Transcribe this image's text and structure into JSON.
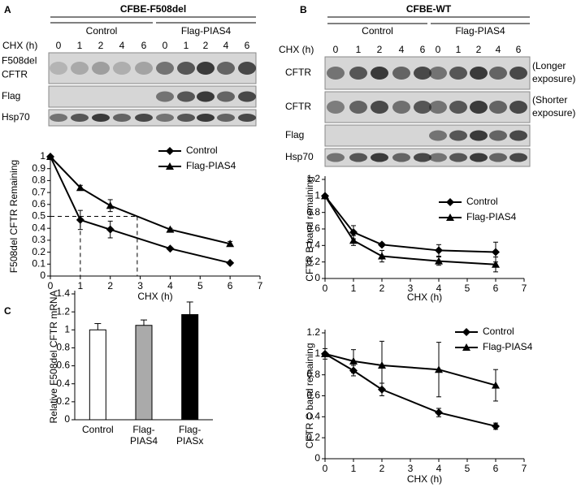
{
  "panels": [
    "A",
    "B",
    "C"
  ],
  "blot_a": {
    "title": "CFBE-F508del",
    "groups": [
      "Control",
      "Flag-PIAS4"
    ],
    "time_label": "CHX (h)",
    "lanes": [
      0,
      1,
      2,
      4,
      6,
      0,
      1,
      2,
      4,
      6
    ],
    "rows": [
      [
        "F508del",
        "CFTR"
      ],
      [
        "Flag"
      ],
      [
        "Hsp70"
      ]
    ]
  },
  "blot_b": {
    "title": "CFBE-WT",
    "groups": [
      "Control",
      "Flag-PIAS4"
    ],
    "time_label": "CHX (h)",
    "lanes": [
      0,
      1,
      2,
      4,
      6,
      0,
      1,
      2,
      4,
      6
    ],
    "rows": [
      [
        "CFTR"
      ],
      [
        "CFTR"
      ],
      [
        "Flag"
      ],
      [
        "Hsp70"
      ]
    ],
    "notes": [
      [
        "(Longer",
        "exposure)"
      ],
      [
        "(Shorter",
        "exposure)"
      ]
    ]
  },
  "chart_data": [
    {
      "type": "line",
      "xlabel": "CHX (h)",
      "ylabel": "F508del CFTR Remaining",
      "x": [
        0,
        1,
        2,
        4,
        6
      ],
      "xlim": [
        0,
        7
      ],
      "xticks": [
        0,
        1,
        2,
        3,
        4,
        5,
        6,
        7
      ],
      "ylim": [
        0,
        1
      ],
      "yticks": [
        0,
        0.1,
        0.2,
        0.3,
        0.4,
        0.5,
        0.6,
        0.7,
        0.8,
        0.9,
        1
      ],
      "legend": "upper right",
      "guides": {
        "y": 0.5,
        "x": [
          1,
          2.9
        ]
      },
      "series": [
        {
          "name": "Control",
          "color": "#000000",
          "marker": "diamond",
          "values": [
            1,
            0.47,
            0.39,
            0.23,
            0.11
          ],
          "errors": [
            0,
            0.08,
            0.07,
            0.01,
            0.01
          ]
        },
        {
          "name": "Flag-PIAS4",
          "color": "#000000",
          "marker": "triangle",
          "values": [
            1,
            0.74,
            0.59,
            0.39,
            0.27
          ],
          "errors": [
            0,
            0.02,
            0.05,
            0.01,
            0.02
          ]
        }
      ]
    },
    {
      "type": "line",
      "xlabel": "CHX (h)",
      "ylabel": "CFTR B band remaining",
      "x": [
        0,
        1,
        2,
        4,
        6
      ],
      "xlim": [
        0,
        7
      ],
      "xticks": [
        0,
        1,
        2,
        3,
        4,
        5,
        6,
        7
      ],
      "ylim": [
        0,
        1.2
      ],
      "yticks": [
        0,
        0.2,
        0.4,
        0.6,
        0.8,
        1,
        1.2
      ],
      "legend": "upper right",
      "series": [
        {
          "name": "Control",
          "color": "#000000",
          "marker": "diamond",
          "values": [
            1,
            0.56,
            0.41,
            0.34,
            0.32
          ],
          "errors": [
            0,
            0.08,
            0.02,
            0.07,
            0.12
          ]
        },
        {
          "name": "Flag-PIAS4",
          "color": "#000000",
          "marker": "triangle",
          "values": [
            1,
            0.46,
            0.27,
            0.21,
            0.17
          ],
          "errors": [
            0,
            0.06,
            0.07,
            0.05,
            0.09
          ]
        }
      ]
    },
    {
      "type": "line",
      "xlabel": "CHX (h)",
      "ylabel": "CFTR C band remaining",
      "x": [
        0,
        1,
        2,
        4,
        6
      ],
      "xlim": [
        0,
        7
      ],
      "xticks": [
        0,
        1,
        2,
        3,
        4,
        5,
        6,
        7
      ],
      "ylim": [
        0,
        1.2
      ],
      "yticks": [
        0,
        0.2,
        0.4,
        0.6,
        0.8,
        1,
        1.2
      ],
      "legend": "upper right",
      "series": [
        {
          "name": "Control",
          "color": "#000000",
          "marker": "diamond",
          "values": [
            1,
            0.84,
            0.66,
            0.44,
            0.31
          ],
          "errors": [
            0,
            0.05,
            0.06,
            0.04,
            0.03
          ]
        },
        {
          "name": "Flag-PIAS4",
          "color": "#000000",
          "marker": "triangle",
          "values": [
            1,
            0.93,
            0.89,
            0.85,
            0.7
          ],
          "errors": [
            0.05,
            0.11,
            0.23,
            0.26,
            0.15
          ]
        }
      ]
    },
    {
      "type": "bar",
      "ylabel": "Relative F508del CFTR mRNA",
      "categories": [
        [
          "Control"
        ],
        [
          "Flag-",
          "PIAS4"
        ],
        [
          "Flag-",
          "PIASx"
        ]
      ],
      "values": [
        1,
        1.05,
        1.17
      ],
      "errors": [
        0.07,
        0.06,
        0.14
      ],
      "colors": [
        "#ffffff",
        "#aaaaaa",
        "#000000"
      ],
      "ylim": [
        0,
        1.4
      ],
      "yticks": [
        0,
        0.2,
        0.4,
        0.6,
        0.8,
        1,
        1.2,
        1.4
      ]
    }
  ]
}
